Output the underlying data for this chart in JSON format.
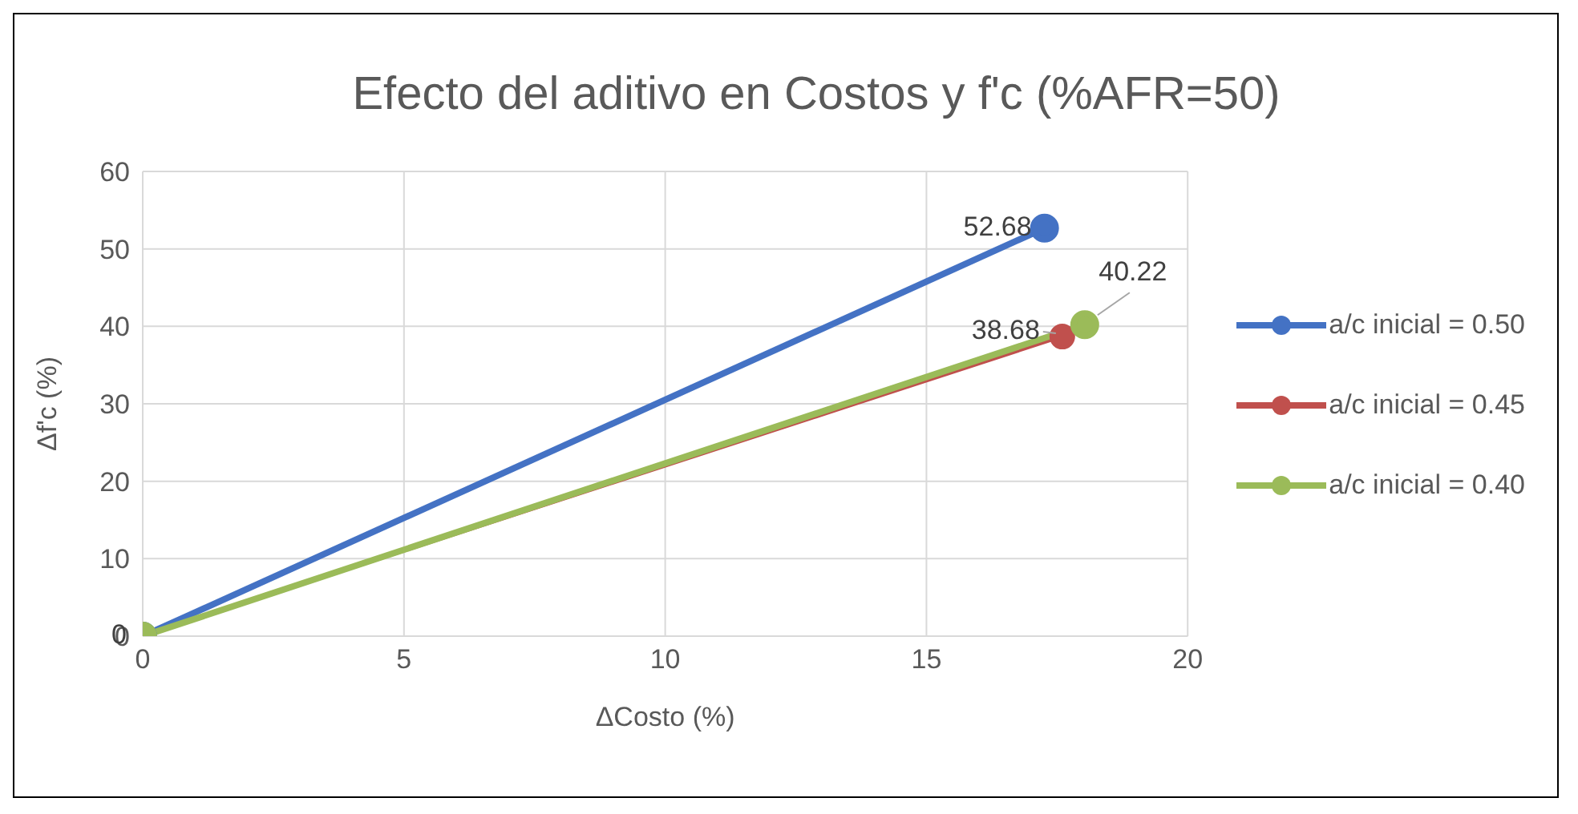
{
  "chart_data": {
    "type": "line",
    "title": "Efecto del aditivo en Costos y f'c (%AFR=50)",
    "xlabel": "ΔCosto (%)",
    "ylabel": "Δf'c (%)",
    "xlim": [
      0,
      20
    ],
    "xticks": [
      0,
      5,
      10,
      15,
      20
    ],
    "ylim": [
      0,
      60
    ],
    "yticks": [
      0,
      10,
      20,
      30,
      40,
      50,
      60
    ],
    "grid": true,
    "legend": "right",
    "marker": "circle",
    "line_style": "solid",
    "series": [
      {
        "name": "a/c inicial = 0.50",
        "color": "#4472c4",
        "x": [
          0,
          17.26
        ],
        "values": [
          0,
          52.68
        ],
        "value_labels": [
          null,
          "52.68"
        ]
      },
      {
        "name": "a/c inicial = 0.45",
        "color": "#c0504d",
        "x": [
          0,
          17.6
        ],
        "values": [
          0,
          38.68
        ],
        "value_labels": [
          null,
          "38.68"
        ]
      },
      {
        "name": "a/c inicial = 0.40",
        "color": "#9bbb59",
        "x": [
          0,
          18.03
        ],
        "values": [
          0,
          40.22
        ],
        "value_labels": [
          "0",
          "40.22"
        ]
      }
    ]
  }
}
